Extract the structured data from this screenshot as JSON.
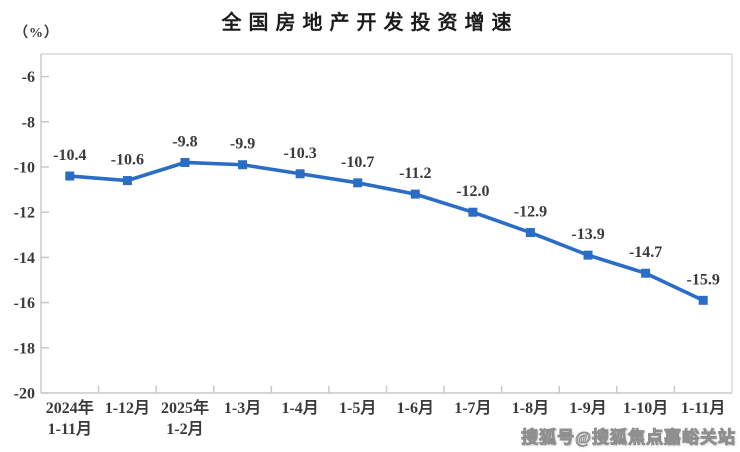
{
  "title": "全国房地产开发投资增速",
  "y_axis_unit": "（%）",
  "watermark": "搜狐号@搜狐焦点嘉峪关站",
  "chart_data": {
    "type": "line",
    "title": "全国房地产开发投资增速",
    "categories": [
      "2024年\n1-11月",
      "1-12月",
      "2025年\n1-2月",
      "1-3月",
      "1-4月",
      "1-5月",
      "1-6月",
      "1-7月",
      "1-8月",
      "1-9月",
      "1-10月",
      "1-11月"
    ],
    "values": [
      -10.4,
      -10.6,
      -9.8,
      -9.9,
      -10.3,
      -10.7,
      -11.2,
      -12.0,
      -12.9,
      -13.9,
      -14.7,
      -15.9
    ],
    "xlabel": "",
    "ylabel": "（%）",
    "ylim": [
      -20,
      -5
    ],
    "yticks": [
      -6,
      -8,
      -10,
      -12,
      -14,
      -16,
      -18,
      -20
    ],
    "grid": false,
    "legend": "none",
    "marker": "square",
    "line_color": "#2b6dc6",
    "axis_color": "#c8c8c8",
    "border_color": "#d9d9d9",
    "label_color": "#3a3a3a"
  }
}
